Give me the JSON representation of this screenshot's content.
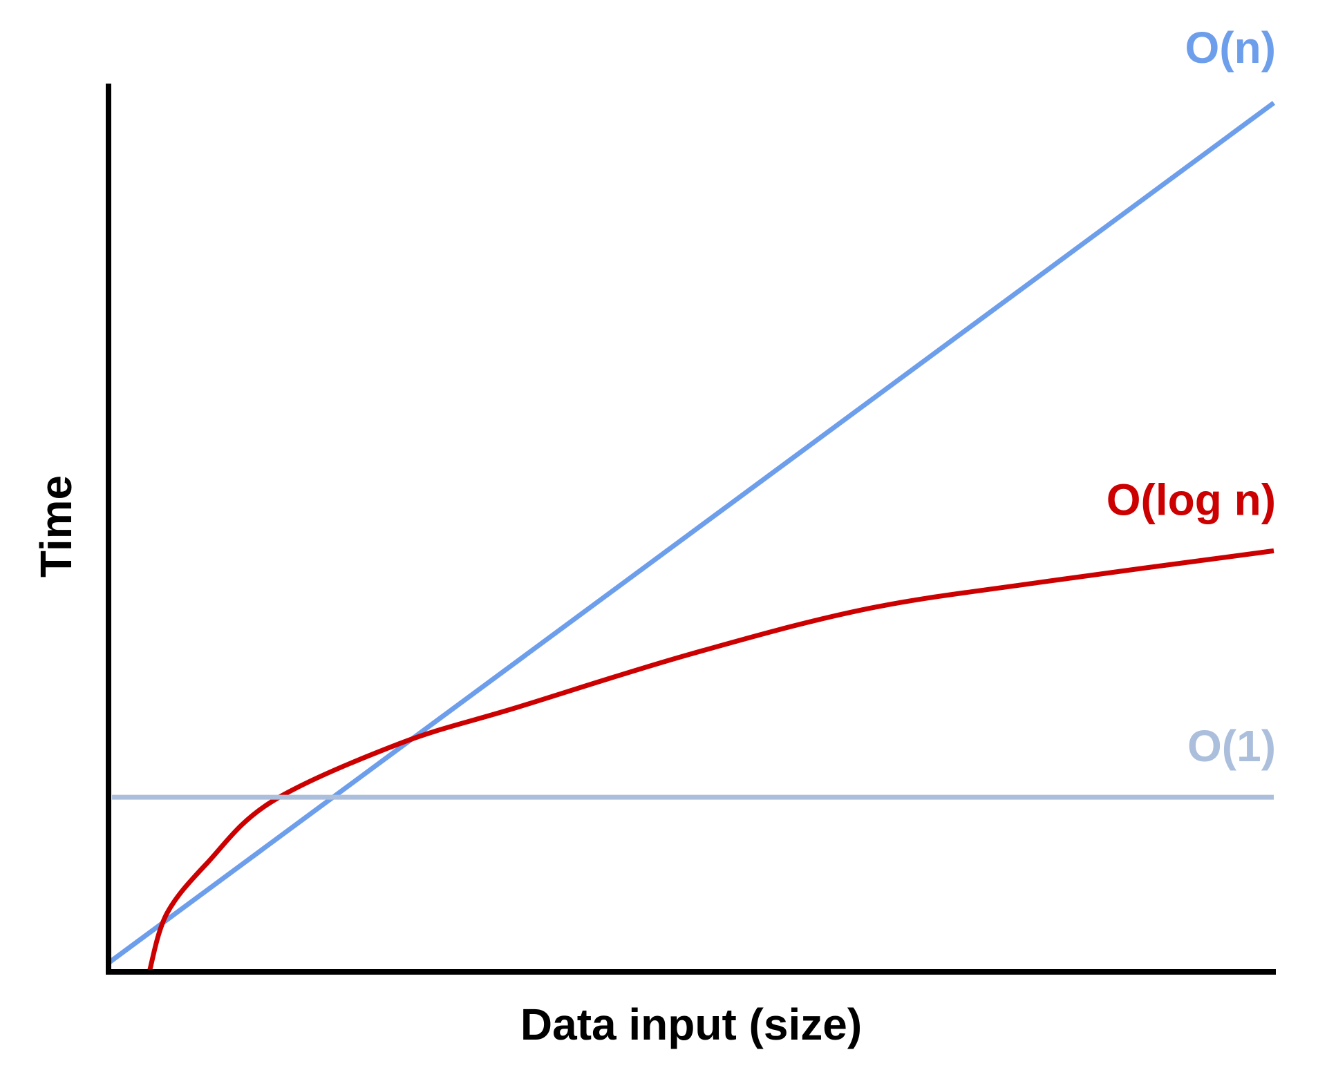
{
  "chart_data": {
    "type": "line",
    "xlabel": "Data input (size)",
    "ylabel": "Time",
    "axis_color": "#000000",
    "grid": false,
    "xlim": [
      0,
      100
    ],
    "ylim": [
      0,
      100
    ],
    "series": [
      {
        "name": "O(n)",
        "color": "#6d9eeb",
        "points": [
          [
            0,
            1
          ],
          [
            100,
            97
          ]
        ]
      },
      {
        "name": "O(log n)",
        "color": "#cc0000",
        "points": [
          [
            3.5,
            0
          ],
          [
            5,
            6.5
          ],
          [
            8.5,
            12.2
          ],
          [
            14,
            19
          ],
          [
            25,
            25.5
          ],
          [
            35,
            29.5
          ],
          [
            50,
            35.5
          ],
          [
            65,
            40.5
          ],
          [
            80,
            43.5
          ],
          [
            100,
            47
          ]
        ]
      },
      {
        "name": "O(1)",
        "color": "#abbfdc",
        "points": [
          [
            0.3,
            19.5
          ],
          [
            100,
            19.5
          ]
        ]
      }
    ]
  }
}
